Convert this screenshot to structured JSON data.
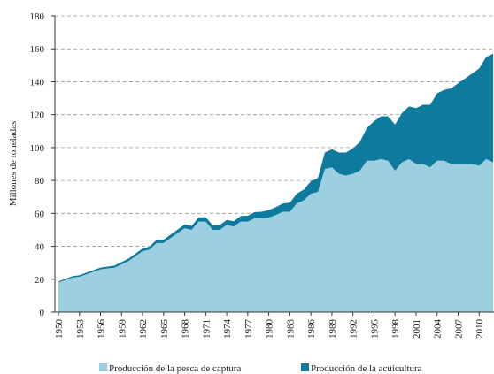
{
  "chart_data": {
    "type": "area",
    "stacked": true,
    "y_label": "Millones de toneladas",
    "x": [
      1950,
      1951,
      1952,
      1953,
      1954,
      1955,
      1956,
      1957,
      1958,
      1959,
      1960,
      1961,
      1962,
      1963,
      1964,
      1965,
      1966,
      1967,
      1968,
      1969,
      1970,
      1971,
      1972,
      1973,
      1974,
      1975,
      1976,
      1977,
      1978,
      1979,
      1980,
      1981,
      1982,
      1983,
      1984,
      1985,
      1986,
      1987,
      1988,
      1989,
      1990,
      1991,
      1992,
      1993,
      1994,
      1995,
      1996,
      1997,
      1998,
      1999,
      2000,
      2001,
      2002,
      2003,
      2004,
      2005,
      2006,
      2007,
      2008,
      2009,
      2010,
      2011,
      2012
    ],
    "series": [
      {
        "name": "Producción de la pesca de captura",
        "color": "#9ccfe0",
        "values": [
          18,
          19.5,
          21,
          21.5,
          23,
          24.5,
          26,
          26.5,
          27,
          29,
          31,
          34,
          37,
          38,
          42,
          42,
          45,
          48,
          51,
          50,
          55,
          55,
          50,
          50,
          53,
          52,
          55,
          55,
          57,
          57,
          57.5,
          59,
          61,
          61,
          66,
          68,
          72,
          73,
          87,
          88,
          84,
          83,
          84,
          86,
          92,
          92,
          93,
          92,
          86,
          91,
          93,
          90,
          90,
          88,
          92,
          92,
          90,
          90,
          90,
          90,
          89,
          93,
          91
        ]
      },
      {
        "name": "Producción de la acuicultura",
        "color": "#0e7a9e",
        "values": [
          0.6,
          0.7,
          0.8,
          0.9,
          1,
          1,
          1.1,
          1.2,
          1.3,
          1.4,
          1.5,
          1.6,
          1.7,
          1.8,
          1.9,
          2,
          2.1,
          2.2,
          2.3,
          2.4,
          2.6,
          2.7,
          2.8,
          2.9,
          3,
          3.2,
          3.4,
          3.6,
          3.8,
          4,
          4.5,
          4.8,
          5,
          5.5,
          6,
          6.5,
          7.5,
          8.5,
          10,
          11,
          13,
          14,
          15.5,
          17.5,
          20,
          24,
          26,
          27,
          28,
          30,
          32,
          34,
          36,
          38,
          41,
          43,
          46,
          49,
          52,
          55,
          59,
          62,
          66
        ]
      }
    ],
    "xlim": [
      1950,
      2013
    ],
    "xticks": [
      1950,
      1953,
      1956,
      1959,
      1962,
      1965,
      1968,
      1971,
      1974,
      1977,
      1980,
      1983,
      1986,
      1989,
      1992,
      1995,
      1998,
      2001,
      2004,
      2007,
      2010,
      2013
    ],
    "ylim": [
      0,
      180
    ],
    "yticks": [
      0,
      20,
      40,
      60,
      80,
      100,
      120,
      140,
      160,
      180
    ],
    "grid": true,
    "legend": "bottom"
  }
}
